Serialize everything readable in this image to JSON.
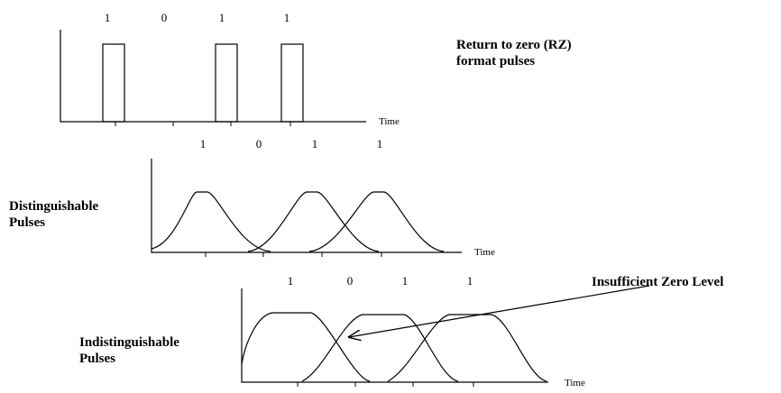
{
  "rz_panel": {
    "bits": [
      "1",
      "0",
      "1",
      "1"
    ],
    "time_label": "Time",
    "caption_line1": "Return to zero (RZ)",
    "caption_line2": "format pulses"
  },
  "distinguishable_panel": {
    "bits": [
      "1",
      "0",
      "1",
      "1"
    ],
    "time_label": "Time",
    "caption_line1": "Distinguishable",
    "caption_line2": "Pulses"
  },
  "indistinguishable_panel": {
    "bits": [
      "1",
      "0",
      "1",
      "1"
    ],
    "time_label": "Time",
    "caption_line1": "Indistinguishable",
    "caption_line2": "Pulses",
    "annotation": "Insufficient Zero Level"
  }
}
